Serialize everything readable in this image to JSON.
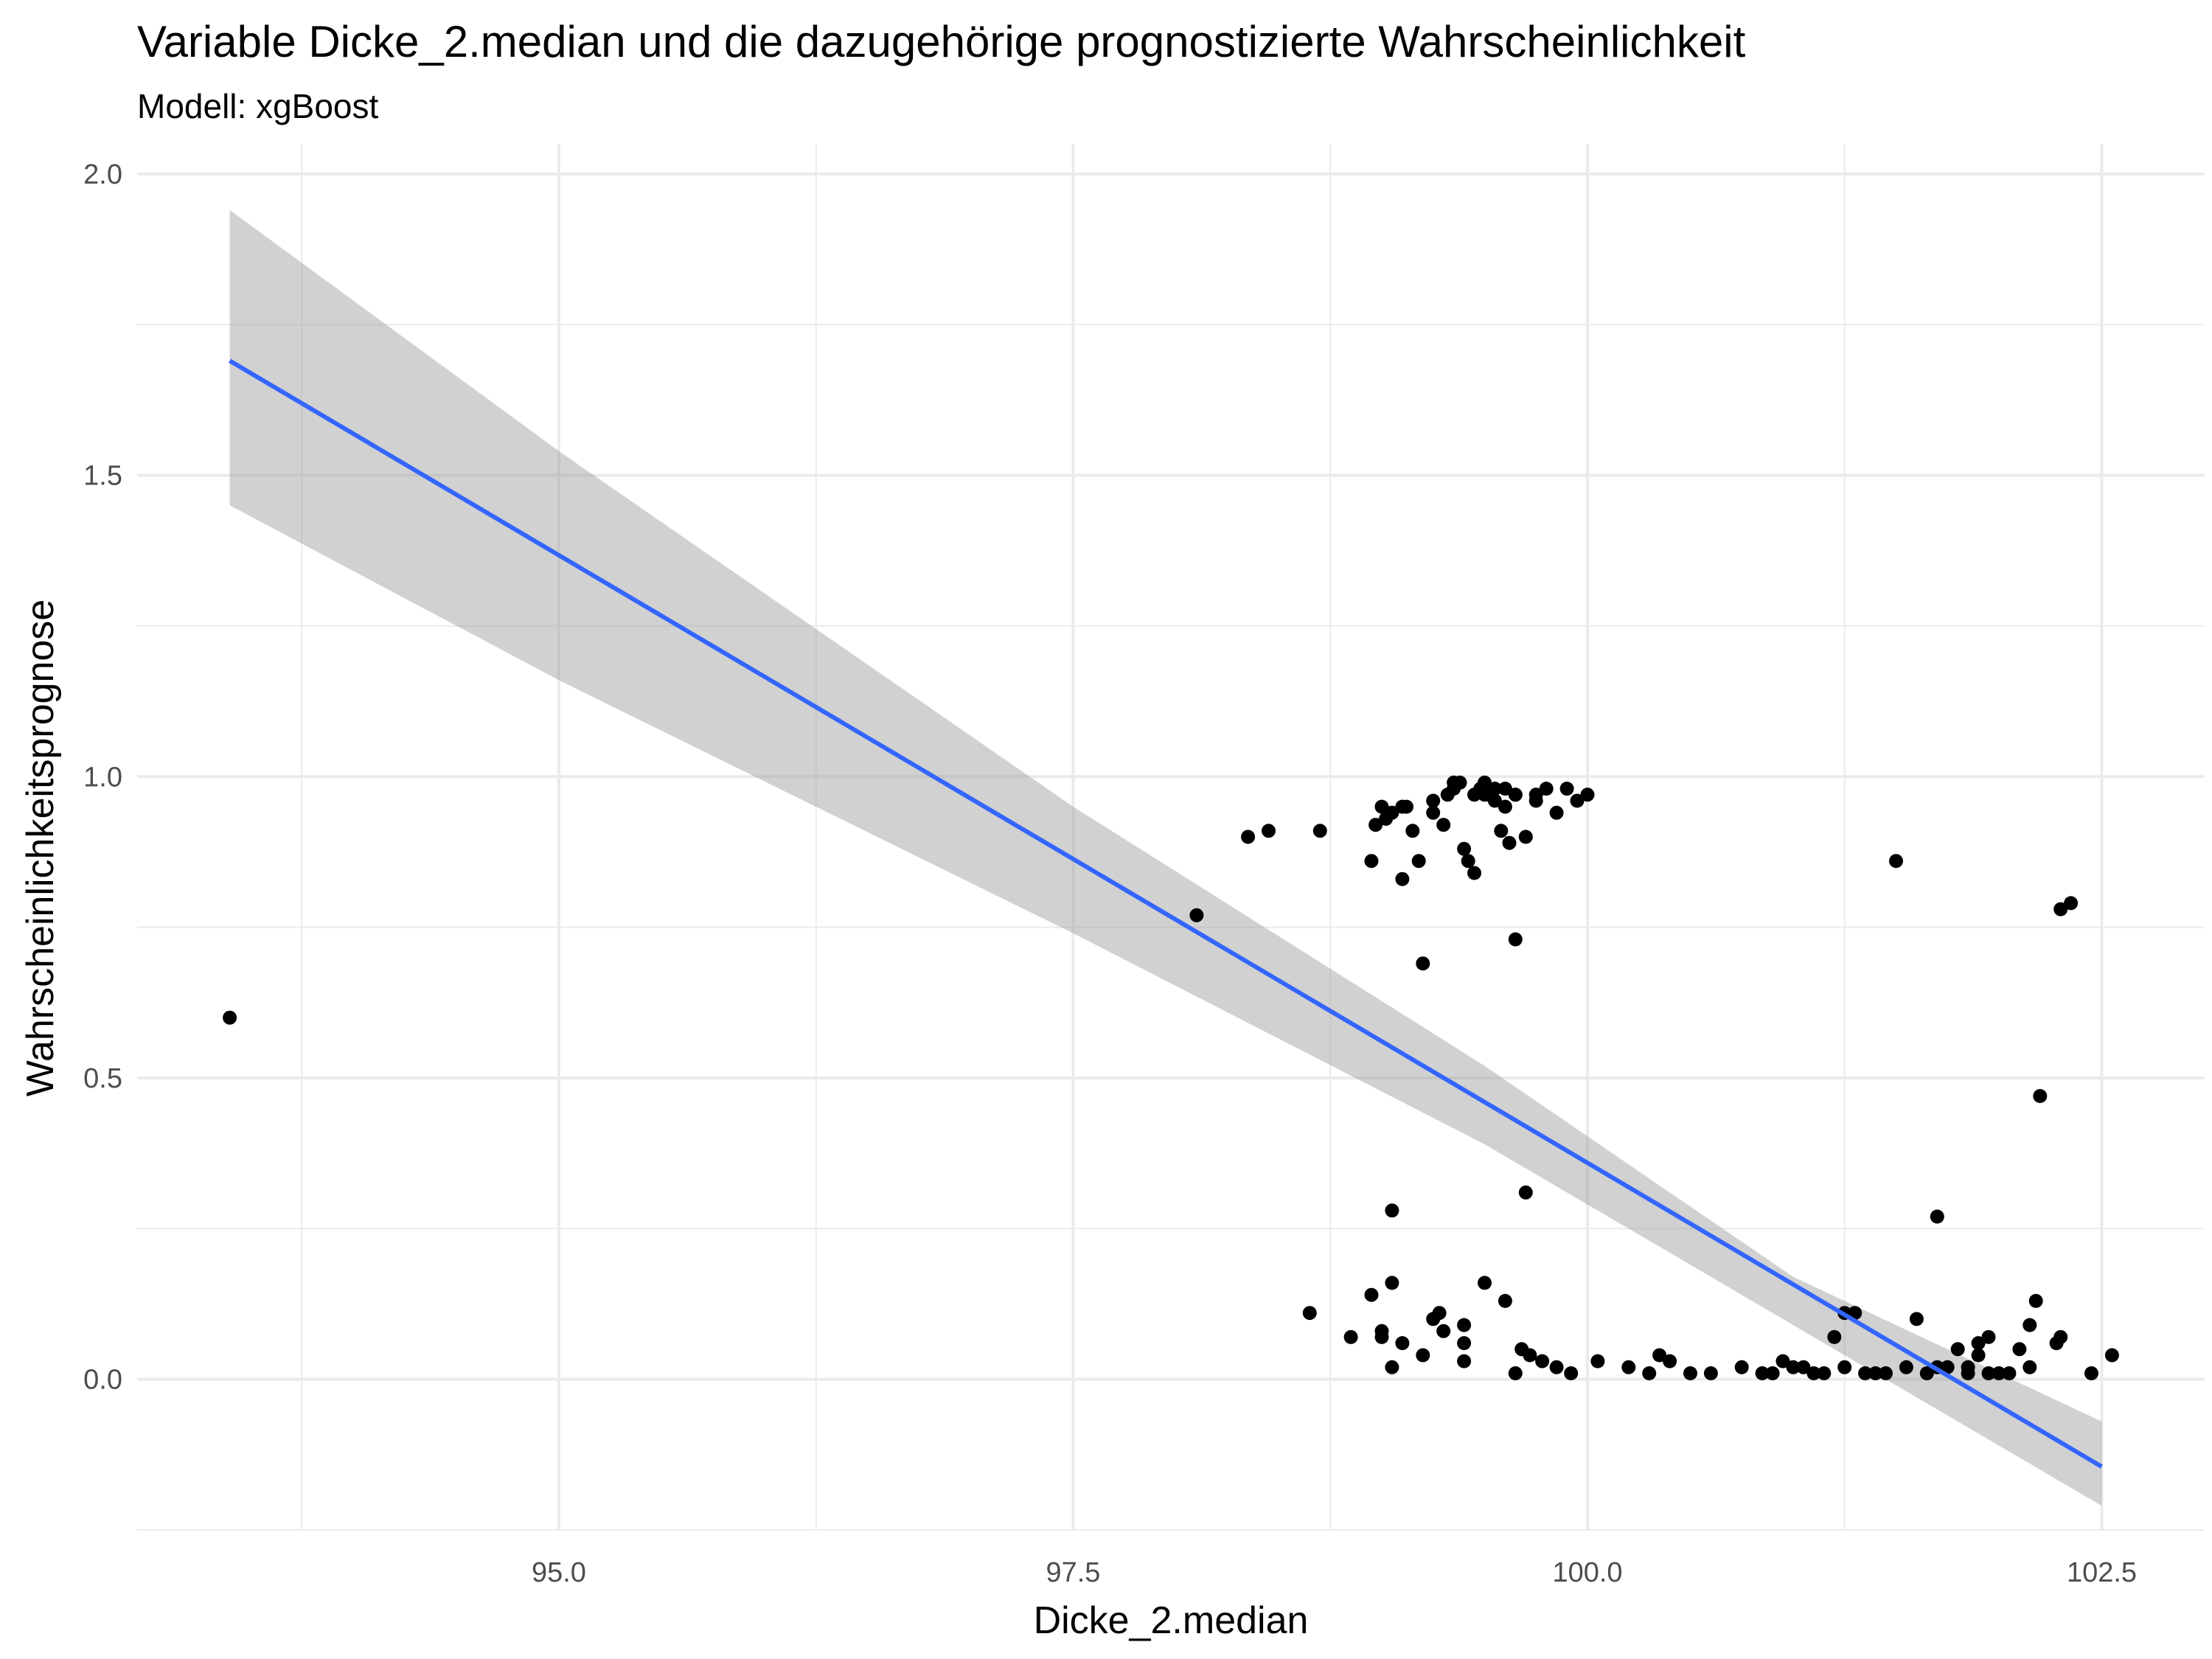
{
  "chart_data": {
    "type": "scatter",
    "title": "Variable Dicke_2.median und die dazugehörige prognostizierte Wahrscheinlichkeit",
    "subtitle": "Modell: xgBoost",
    "xlabel": "Dicke_2.median",
    "ylabel": "Wahrscheinlichkeitsprognose",
    "xlim": [
      92.95,
      103.0
    ],
    "ylim": [
      -0.25,
      2.05
    ],
    "x_ticks": [
      95.0,
      97.5,
      100.0,
      102.5
    ],
    "x_tick_labels": [
      "95.0",
      "97.5",
      "100.0",
      "102.5"
    ],
    "y_ticks": [
      0.0,
      0.5,
      1.0,
      1.5,
      2.0
    ],
    "y_tick_labels": [
      "0.0",
      "0.5",
      "1.0",
      "1.5",
      "2.0"
    ],
    "grid": true,
    "colors": {
      "points": "#000000",
      "fit_line": "#3366ff",
      "ribbon": "#999999",
      "grid": "#ebebeb"
    },
    "fit_line": {
      "name": "",
      "x": [
        93.4,
        102.5
      ],
      "y": [
        1.69,
        -0.145
      ]
    },
    "confidence_band": {
      "x": [
        93.4,
        95.0,
        97.5,
        99.5,
        101.0,
        102.5
      ],
      "lower": [
        1.45,
        1.16,
        0.74,
        0.39,
        0.09,
        -0.21
      ],
      "upper": [
        1.94,
        1.54,
        0.95,
        0.52,
        0.17,
        -0.07
      ]
    },
    "points": {
      "x": [
        93.4,
        98.1,
        98.35,
        98.45,
        98.7,
        98.95,
        98.97,
        99.0,
        99.02,
        99.05,
        99.1,
        99.12,
        99.15,
        99.18,
        99.2,
        99.25,
        99.3,
        99.32,
        99.35,
        99.38,
        99.4,
        99.42,
        99.45,
        99.48,
        99.5,
        99.52,
        99.55,
        99.58,
        99.6,
        99.62,
        99.65,
        99.7,
        99.75,
        99.8,
        99.85,
        99.9,
        99.95,
        100.0,
        99.1,
        99.35,
        99.45,
        99.5,
        99.55,
        99.6,
        99.65,
        99.75,
        99.25,
        99.65,
        101.5,
        102.3,
        102.35,
        102.2,
        99.05,
        99.7,
        101.7,
        98.65,
        98.85,
        98.95,
        99.05,
        99.1,
        99.25,
        99.28,
        99.4,
        99.5,
        99.6,
        99.68,
        99.72,
        99.78,
        99.85,
        99.92,
        100.05,
        100.2,
        100.3,
        100.35,
        100.4,
        100.5,
        100.6,
        100.75,
        100.85,
        100.95,
        101.05,
        101.15,
        101.25,
        101.35,
        101.45,
        101.55,
        101.65,
        101.75,
        101.85,
        101.95,
        102.05,
        102.15,
        102.3,
        102.45,
        102.55,
        101.25,
        101.3,
        101.6,
        101.8,
        101.9,
        101.95,
        102.15,
        102.18,
        99.0,
        99.05,
        99.3,
        99.4,
        99.0,
        99.2,
        99.4,
        99.65,
        101.2,
        101.9,
        102.1,
        102.28,
        100.9,
        101.0,
        101.1,
        101.4,
        101.7,
        101.85,
        102.0
      ],
      "y": [
        0.6,
        0.77,
        0.9,
        0.91,
        0.91,
        0.86,
        0.92,
        0.95,
        0.93,
        0.94,
        0.83,
        0.95,
        0.91,
        0.86,
        0.69,
        0.94,
        0.92,
        0.97,
        0.98,
        0.99,
        0.88,
        0.86,
        0.97,
        0.98,
        0.99,
        0.97,
        0.96,
        0.91,
        0.98,
        0.89,
        0.97,
        0.9,
        0.97,
        0.98,
        0.94,
        0.98,
        0.96,
        0.97,
        0.95,
        0.99,
        0.84,
        0.97,
        0.98,
        0.95,
        0.73,
        0.96,
        0.96,
        0.97,
        0.86,
        0.78,
        0.79,
        0.47,
        0.28,
        0.31,
        0.27,
        0.11,
        0.07,
        0.14,
        0.16,
        0.06,
        0.1,
        0.11,
        0.09,
        0.16,
        0.13,
        0.05,
        0.04,
        0.03,
        0.02,
        0.01,
        0.03,
        0.02,
        0.01,
        0.04,
        0.03,
        0.01,
        0.01,
        0.02,
        0.01,
        0.03,
        0.02,
        0.01,
        0.02,
        0.01,
        0.01,
        0.02,
        0.01,
        0.02,
        0.01,
        0.01,
        0.01,
        0.02,
        0.07,
        0.01,
        0.04,
        0.11,
        0.11,
        0.1,
        0.05,
        0.06,
        0.07,
        0.09,
        0.13,
        0.08,
        0.02,
        0.08,
        0.03,
        0.07,
        0.04,
        0.06,
        0.01,
        0.07,
        0.04,
        0.05,
        0.06,
        0.01,
        0.02,
        0.01,
        0.01,
        0.02,
        0.02,
        0.01
      ]
    }
  }
}
